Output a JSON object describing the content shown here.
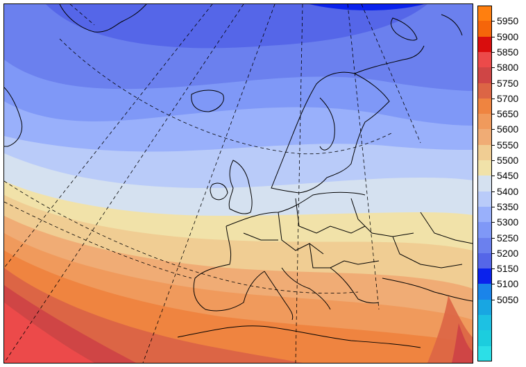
{
  "legend": {
    "bands": [
      {
        "color": "#ff7f0f"
      },
      {
        "color": "#f5650a"
      },
      {
        "color": "#d90d0d"
      },
      {
        "color": "#ec4a4a"
      },
      {
        "color": "#cf4545"
      },
      {
        "color": "#dc6545"
      },
      {
        "color": "#ef8440"
      },
      {
        "color": "#f09a5c"
      },
      {
        "color": "#f0ac75"
      },
      {
        "color": "#f0cd93"
      },
      {
        "color": "#f1e2a9"
      },
      {
        "color": "#d5e1f0"
      },
      {
        "color": "#b9cbf9"
      },
      {
        "color": "#99b0fb"
      },
      {
        "color": "#7f98f7"
      },
      {
        "color": "#6b80ee"
      },
      {
        "color": "#5566e8"
      },
      {
        "color": "#0a22ec"
      },
      {
        "color": "#1a84ea"
      },
      {
        "color": "#18a6e2"
      },
      {
        "color": "#1dc1e3"
      },
      {
        "color": "#1ccdde"
      },
      {
        "color": "#2cdfe7"
      }
    ],
    "labels": [
      "5950",
      "5900",
      "5850",
      "5800",
      "5750",
      "5700",
      "5650",
      "5600",
      "5550",
      "5500",
      "5450",
      "5400",
      "5350",
      "5300",
      "5250",
      "5200",
      "5150",
      "5100",
      "5050"
    ]
  },
  "map": {
    "field_colors": {
      "c5200": "#0a22ec",
      "c5250": "#5566e8",
      "c5300": "#6b80ee",
      "c5350": "#7f98f7",
      "c5400": "#99b0fb",
      "c5450": "#b9cbf9",
      "c5500": "#d5e1f0",
      "c5550": "#f1e2a9",
      "c5600": "#f0cd93",
      "c5650": "#f0ac75",
      "c5700": "#f09a5c",
      "c5750": "#ef8440",
      "c5800": "#dc6545",
      "c5850": "#cf4545",
      "c5900": "#ec4a4a"
    }
  }
}
